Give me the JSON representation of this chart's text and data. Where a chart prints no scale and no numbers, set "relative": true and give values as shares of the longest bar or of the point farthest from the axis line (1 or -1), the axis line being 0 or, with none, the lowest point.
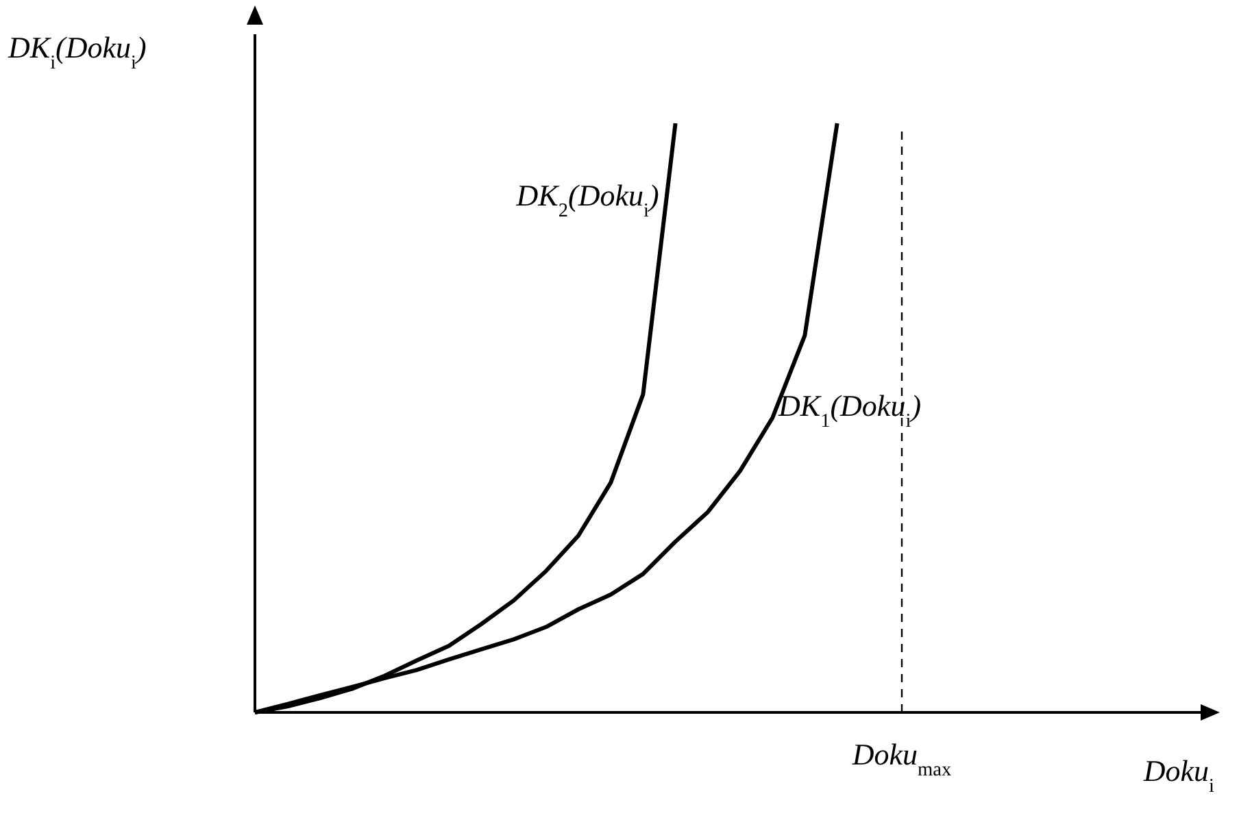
{
  "chart_data": {
    "type": "line",
    "relative": true,
    "annotations": [
      "Doku$_{i}$"
    ],
    "ylabel": "DK$_{i}$(Doku$_{i}$)",
    "marker": "none",
    "line_style": "solid",
    "categories": [
      null,
      null,
      null,
      null,
      null,
      null,
      null,
      null,
      null,
      null,
      null,
      null,
      null,
      null,
      null,
      null,
      null,
      null,
      null,
      null,
      null
    ],
    "series": [
      {
        "name": "DK$_{2}$(Doku$_{i}$)",
        "color": "#000000",
        "values": [
          0,
          0.01,
          0.024,
          0.04,
          0.062,
          0.088,
          0.113,
          0.15,
          0.19,
          0.24,
          0.3,
          0.39,
          0.54,
          1,
          null,
          null,
          null,
          null,
          null,
          null,
          null
        ]
      },
      {
        "name": "DK$_{1}$(Doku$_{i}$)",
        "color": "#000000",
        "values": [
          0,
          0.014,
          0.029,
          0.043,
          0.058,
          0.072,
          0.09,
          0.107,
          0.124,
          0.145,
          0.175,
          0.2,
          0.235,
          0.29,
          0.34,
          0.41,
          0.5,
          0.64,
          1,
          null,
          null
        ]
      }
    ],
    "ref_lines": [
      {
        "axis": "x",
        "label": "Doku$_{max}$",
        "line_style": "dashed",
        "color": "#000000"
      }
    ]
  }
}
